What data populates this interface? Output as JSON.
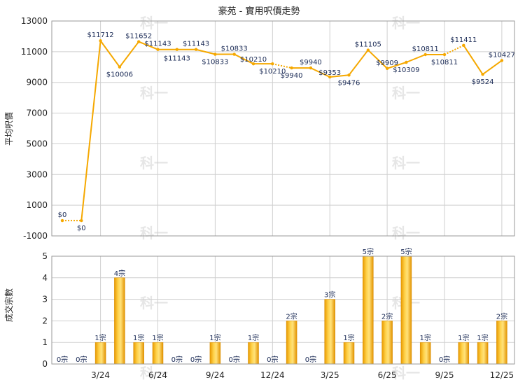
{
  "chart_data": [
    {
      "type": "line",
      "title": "豪苑 - 實用呎價走勢",
      "ylabel": "平均呎價",
      "ylim": [
        -1000,
        13000
      ],
      "yticks": [
        -1000,
        1000,
        3000,
        5000,
        7000,
        9000,
        11000,
        13000
      ],
      "grid": true,
      "color": "#f5a800",
      "dotted_segments": [
        [
          0,
          1
        ],
        [
          11,
          12
        ],
        [
          20,
          21
        ]
      ],
      "series": [
        {
          "values": [
            0,
            0,
            11712,
            10006,
            11652,
            11143,
            11143,
            11143,
            10833,
            10833,
            10210,
            10210,
            9940,
            9940,
            9353,
            9476,
            11105,
            9909,
            10309,
            10811,
            10811,
            11411,
            9524,
            10427
          ],
          "labels": [
            "$0",
            "$0",
            "$11712",
            "$10006",
            "$11652",
            "$11143",
            "$11143",
            "$11143",
            "$10833",
            "$10833",
            "$10210",
            "$10210",
            "$9940",
            "$9940",
            "$9353",
            "$9476",
            "$11105",
            "$9909",
            "$10309",
            "$10811",
            "$10811",
            "$11411",
            "$9524",
            "$10427"
          ]
        }
      ]
    },
    {
      "type": "bar",
      "ylabel": "成交宗數",
      "ylim": [
        0,
        5
      ],
      "yticks": [
        0,
        1,
        2,
        3,
        4,
        5
      ],
      "grid": true,
      "color": "#f2b01e",
      "x_tick_labels": [
        "3/24",
        "6/24",
        "9/24",
        "12/24",
        "3/25",
        "6/25",
        "9/25",
        "12/25"
      ],
      "series": [
        {
          "values": [
            0,
            0,
            1,
            4,
            1,
            1,
            0,
            0,
            1,
            0,
            1,
            0,
            2,
            0,
            3,
            1,
            5,
            2,
            5,
            1,
            0,
            1,
            1,
            2
          ],
          "labels": [
            "0宗",
            "0宗",
            "1宗",
            "4宗",
            "1宗",
            "1宗",
            "0宗",
            "0宗",
            "1宗",
            "0宗",
            "1宗",
            "0宗",
            "2宗",
            "0宗",
            "3宗",
            "1宗",
            "5宗",
            "2宗",
            "5宗",
            "1宗",
            "0宗",
            "1宗",
            "1宗",
            "2宗"
          ]
        }
      ]
    }
  ]
}
